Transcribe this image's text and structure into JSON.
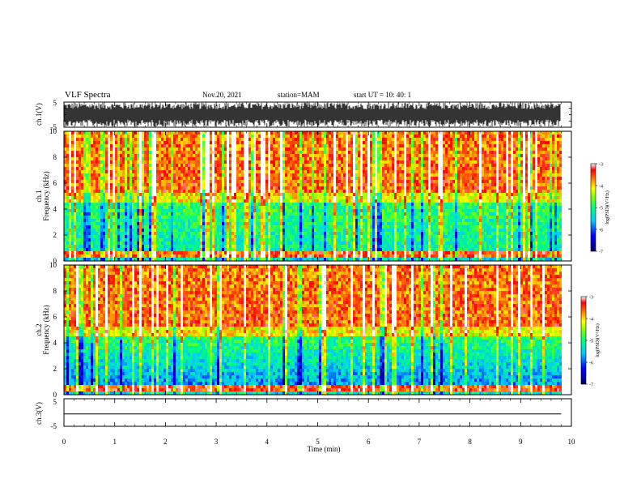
{
  "header": {
    "title": "VLF Spectra",
    "date": "Nov.20, 2021",
    "station": "station=MAM",
    "start": "start  UT  =   10: 40: 1"
  },
  "chart_data": [
    {
      "type": "line",
      "panel": "ch1-waveform",
      "ylabel": "ch.1(V)",
      "ylim": [
        -5,
        5
      ],
      "yticks": [
        "5",
        "-5"
      ],
      "xlim": [
        0,
        10
      ]
    },
    {
      "type": "heatmap",
      "panel": "ch1-spectrogram",
      "ylabel_line1": "ch.1",
      "ylabel_line2": "Frequency (kHz)",
      "ylim": [
        0,
        10
      ],
      "yticks": [
        "0",
        "2",
        "4",
        "6",
        "8",
        "10"
      ],
      "xlim": [
        0,
        9.8
      ],
      "colorbar": {
        "range": [
          -7,
          -3
        ],
        "ticks": [
          "-3",
          "-4",
          "-5",
          "-6",
          "-7"
        ],
        "label": "log(PSD)(V²/Hz)"
      }
    },
    {
      "type": "heatmap",
      "panel": "ch2-spectrogram",
      "ylabel_line1": "ch.2",
      "ylabel_line2": "Frequency (kHz)",
      "ylim": [
        0,
        10
      ],
      "yticks": [
        "0",
        "2",
        "4",
        "6",
        "8",
        "10"
      ],
      "xlim": [
        0,
        9.8
      ],
      "colorbar": {
        "range": [
          -7,
          -3
        ],
        "ticks": [
          "-3",
          "-4",
          "-5",
          "-6",
          "-7"
        ],
        "label": "log(PSD)(V²/Hz)"
      }
    },
    {
      "type": "line",
      "panel": "ch3-waveform",
      "ylabel": "ch.3(V)",
      "ylim": [
        -5,
        5
      ],
      "yticks": [
        "5",
        "-5"
      ],
      "x": [
        0,
        9.8
      ],
      "y": [
        -0.5,
        -0.5
      ]
    }
  ],
  "xaxis": {
    "label": "Time (min)",
    "ticks": [
      "0",
      "1",
      "2",
      "3",
      "4",
      "5",
      "6",
      "7",
      "8",
      "9",
      "10"
    ],
    "range": [
      0,
      10
    ]
  }
}
